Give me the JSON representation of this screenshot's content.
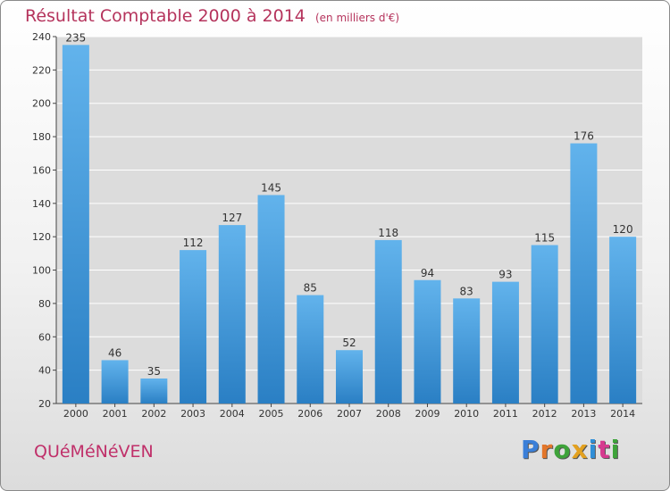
{
  "title": "Résultat Comptable 2000 à 2014",
  "unit": "(en milliers d'€)",
  "commune": "QUéMéNéVEN",
  "logo_text": "Proxiti",
  "logo_colors": [
    "#3b7fd8",
    "#e3762a",
    "#3ea33a",
    "#e3a11f",
    "#2f8fd8",
    "#d63a8f",
    "#3ea33a"
  ],
  "colors": {
    "title": "#b5335c",
    "bar_light": "#62b3ec",
    "bar_dark": "#2a7fc4",
    "plot_bg": "#dcdcdc",
    "grid": "#ffffff"
  },
  "chart_data": {
    "type": "bar",
    "title": "Résultat Comptable 2000 à 2014",
    "ylabel": "(en milliers d'€)",
    "categories": [
      "2000",
      "2001",
      "2002",
      "2003",
      "2004",
      "2005",
      "2006",
      "2007",
      "2008",
      "2009",
      "2010",
      "2011",
      "2012",
      "2013",
      "2014"
    ],
    "values": [
      235,
      46,
      35,
      112,
      127,
      145,
      85,
      52,
      118,
      94,
      83,
      93,
      115,
      176,
      120
    ],
    "ylim": [
      20,
      240
    ],
    "yticks": [
      20,
      40,
      60,
      80,
      100,
      120,
      140,
      160,
      180,
      200,
      220,
      240
    ],
    "grid": true,
    "legend": "none"
  }
}
